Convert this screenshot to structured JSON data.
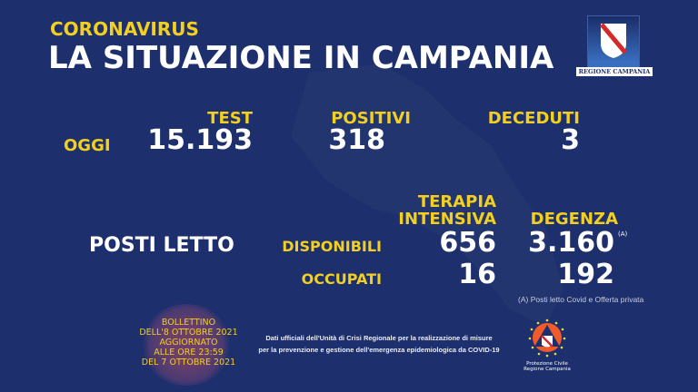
{
  "header": {
    "subtitle": "CORONAVIRUS",
    "title": "LA SITUAZIONE IN CAMPANIA",
    "logo_text": "REGIONE CAMPANIA"
  },
  "today": {
    "label": "OGGI",
    "columns": [
      {
        "label": "TEST",
        "value": "15.193"
      },
      {
        "label": "POSITIVI",
        "value": "318"
      },
      {
        "label": "DECEDUTI",
        "value": "3"
      }
    ]
  },
  "beds": {
    "label": "POSTI LETTO",
    "col_ti_line1": "TERAPIA",
    "col_ti_line2": "INTENSIVA",
    "col_deg": "DEGENZA",
    "row_disp": "DISPONIBILI",
    "row_occ": "OCCUPATI",
    "ti_disp": "656",
    "deg_disp": "3.160",
    "deg_note_mark": "(A)",
    "ti_occ": "16",
    "deg_occ": "192",
    "footnote": "(A) Posti letto Covid e Offerta privata"
  },
  "bulletin": {
    "line1": "BOLLETTINO",
    "line2": "DELL'8 OTTOBRE 2021",
    "line3": "AGGIORNATO",
    "line4": "ALLE ORE 23:59",
    "line5": "DEL 7 OTTOBRE 2021"
  },
  "source_note": {
    "line1": "Dati ufficiali dell'Unità di Crisi Regionale per la realizzazione di misure",
    "line2": "per la prevenzione e gestione dell'emergenza epidemiologica da COVID-19"
  },
  "civil_protection": {
    "line1": "Protezione Civile",
    "line2": "Regione Campania"
  },
  "colors": {
    "background": "#1d2f6c",
    "accent": "#f3cf1f",
    "text": "#ffffff"
  }
}
